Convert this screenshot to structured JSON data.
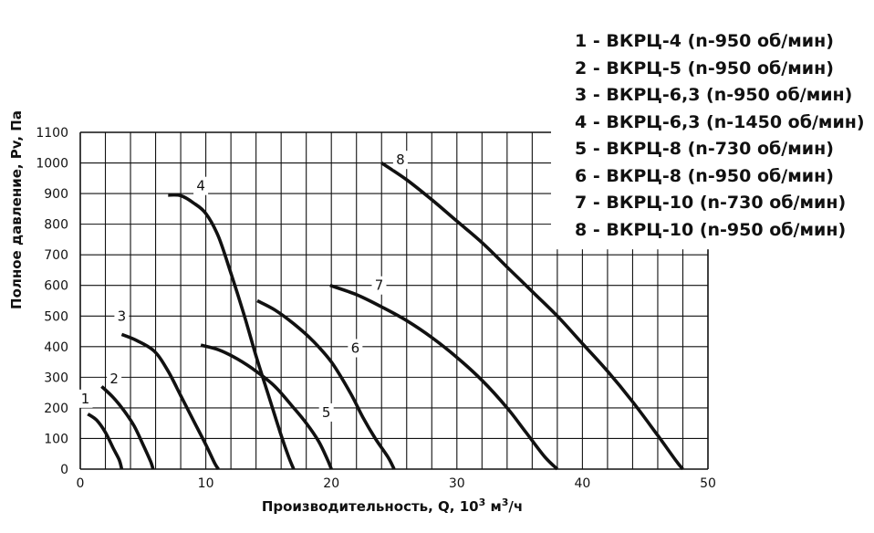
{
  "legend": [
    "1 - ВКРЦ-4 (n-950 об/мин)",
    "2 - ВКРЦ-5 (n-950 об/мин)",
    "3 - ВКРЦ-6,3 (n-950 об/мин)",
    "4 - ВКРЦ-6,3 (n-1450 об/мин)",
    "5 - ВКРЦ-8 (n-730 об/мин)",
    "6 - ВКРЦ-8 (n-950 об/мин)",
    "7 - ВКРЦ-10 (n-730 об/мин)",
    "8 - ВКРЦ-10 (n-950 об/мин)"
  ],
  "chart_data": {
    "type": "line",
    "xlabel_main": "Производительность, Q, 10",
    "xlabel_sup1": "3",
    "xlabel_mid": " м",
    "xlabel_sup2": "3",
    "xlabel_end": "/ч",
    "ylabel": "Полное давление, Pv, Па",
    "xlim": [
      0,
      50
    ],
    "ylim": [
      0,
      1100
    ],
    "xticks": [
      "0",
      "10",
      "20",
      "30",
      "40",
      "50"
    ],
    "yticks": [
      "0",
      "100",
      "200",
      "300",
      "400",
      "500",
      "600",
      "700",
      "800",
      "900",
      "1000",
      "1100"
    ],
    "grid": true,
    "series": [
      {
        "name": "1",
        "points": [
          [
            0.6,
            180
          ],
          [
            1.3,
            160
          ],
          [
            2.0,
            120
          ],
          [
            2.6,
            70
          ],
          [
            3.1,
            30
          ],
          [
            3.3,
            0
          ]
        ]
      },
      {
        "name": "2",
        "points": [
          [
            1.7,
            270
          ],
          [
            2.6,
            235
          ],
          [
            3.5,
            190
          ],
          [
            4.3,
            140
          ],
          [
            5.0,
            80
          ],
          [
            5.6,
            25
          ],
          [
            5.8,
            0
          ]
        ]
      },
      {
        "name": "3",
        "points": [
          [
            3.3,
            440
          ],
          [
            4.5,
            420
          ],
          [
            5.9,
            385
          ],
          [
            7.0,
            320
          ],
          [
            8.0,
            240
          ],
          [
            9.0,
            160
          ],
          [
            10.0,
            80
          ],
          [
            10.7,
            20
          ],
          [
            11.0,
            0
          ]
        ]
      },
      {
        "name": "4",
        "points": [
          [
            7.0,
            895
          ],
          [
            8.0,
            893
          ],
          [
            9.0,
            870
          ],
          [
            10.0,
            835
          ],
          [
            11.0,
            760
          ],
          [
            12.0,
            640
          ],
          [
            13.0,
            510
          ],
          [
            14.0,
            370
          ],
          [
            15.0,
            240
          ],
          [
            16.0,
            110
          ],
          [
            16.6,
            40
          ],
          [
            17.0,
            0
          ]
        ]
      },
      {
        "name": "5",
        "points": [
          [
            9.6,
            405
          ],
          [
            11.0,
            390
          ],
          [
            12.5,
            360
          ],
          [
            14.0,
            320
          ],
          [
            15.5,
            270
          ],
          [
            17.0,
            200
          ],
          [
            18.0,
            150
          ],
          [
            19.0,
            90
          ],
          [
            19.7,
            30
          ],
          [
            20.0,
            0
          ]
        ]
      },
      {
        "name": "6",
        "points": [
          [
            14.1,
            550
          ],
          [
            15.5,
            520
          ],
          [
            17.0,
            475
          ],
          [
            18.5,
            420
          ],
          [
            20.0,
            350
          ],
          [
            21.5,
            250
          ],
          [
            22.5,
            170
          ],
          [
            23.5,
            100
          ],
          [
            24.5,
            40
          ],
          [
            25.0,
            0
          ]
        ]
      },
      {
        "name": "7",
        "points": [
          [
            19.9,
            600
          ],
          [
            22.0,
            570
          ],
          [
            24.0,
            530
          ],
          [
            26.0,
            485
          ],
          [
            28.0,
            430
          ],
          [
            30.0,
            365
          ],
          [
            32.0,
            290
          ],
          [
            34.0,
            200
          ],
          [
            35.5,
            120
          ],
          [
            37.0,
            40
          ],
          [
            38.0,
            0
          ]
        ]
      },
      {
        "name": "8",
        "points": [
          [
            24.0,
            1000
          ],
          [
            26.0,
            945
          ],
          [
            28.0,
            880
          ],
          [
            30.0,
            810
          ],
          [
            32.0,
            740
          ],
          [
            34.0,
            660
          ],
          [
            36.0,
            580
          ],
          [
            38.0,
            500
          ],
          [
            40.0,
            410
          ],
          [
            42.0,
            320
          ],
          [
            44.0,
            220
          ],
          [
            46.0,
            110
          ],
          [
            47.5,
            25
          ],
          [
            48.0,
            0
          ]
        ]
      }
    ],
    "curve_labels": [
      {
        "text": "1",
        "x": 0.4,
        "y": 230
      },
      {
        "text": "2",
        "x": 2.7,
        "y": 295
      },
      {
        "text": "3",
        "x": 3.3,
        "y": 500
      },
      {
        "text": "4",
        "x": 9.6,
        "y": 925
      },
      {
        "text": "5",
        "x": 19.6,
        "y": 185
      },
      {
        "text": "6",
        "x": 21.9,
        "y": 395
      },
      {
        "text": "7",
        "x": 23.8,
        "y": 600
      },
      {
        "text": "8",
        "x": 25.5,
        "y": 1010
      }
    ]
  }
}
